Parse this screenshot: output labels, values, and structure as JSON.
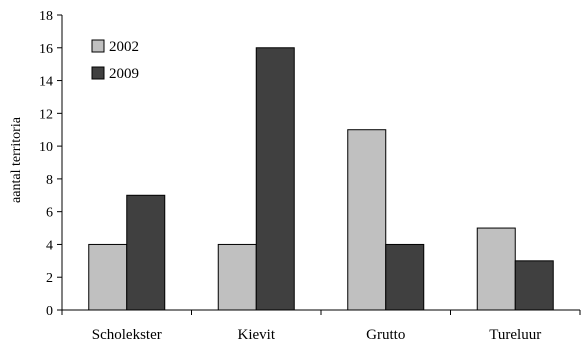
{
  "chart_data": {
    "type": "bar",
    "title": "",
    "xlabel": "",
    "ylabel": "aantal territoria",
    "ylim": [
      0,
      18
    ],
    "yticks": [
      "0",
      "2",
      "4",
      "6",
      "8",
      "10",
      "12",
      "14",
      "16",
      "18"
    ],
    "categories": [
      "Scholekster",
      "Kievit",
      "Grutto",
      "Tureluur"
    ],
    "series": [
      {
        "name": "2002",
        "values": [
          4,
          4,
          11,
          5
        ],
        "color": "#c0c0c0"
      },
      {
        "name": "2009",
        "values": [
          7,
          16,
          4,
          3
        ],
        "color": "#404040"
      }
    ],
    "legend_position": "top-left",
    "grid": false
  }
}
